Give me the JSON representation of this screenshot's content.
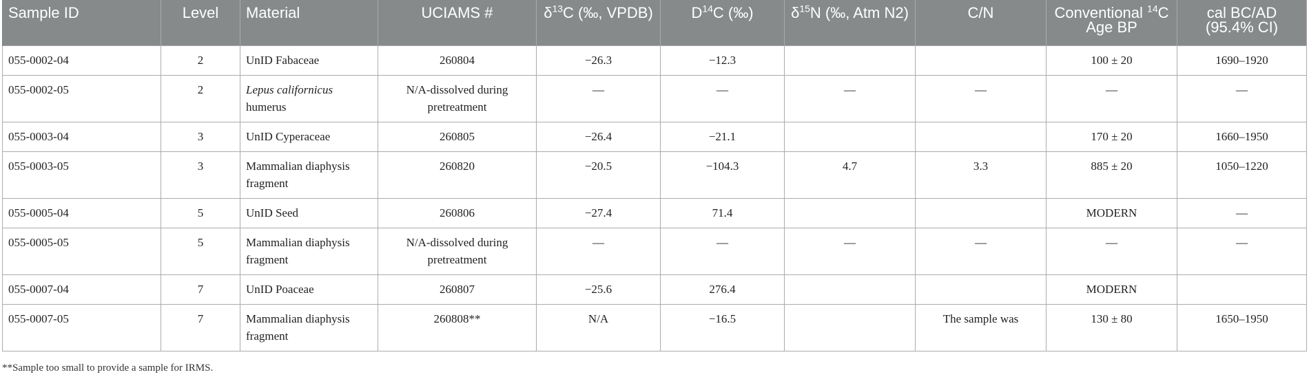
{
  "table": {
    "headers": [
      {
        "pre": "Sample ID",
        "sup": "",
        "post": ""
      },
      {
        "pre": "Level",
        "sup": "",
        "post": ""
      },
      {
        "pre": "Material",
        "sup": "",
        "post": ""
      },
      {
        "pre": "UCIAMS #",
        "sup": "",
        "post": ""
      },
      {
        "pre": "δ",
        "sup": "13",
        "post": "C (‰, VPDB)"
      },
      {
        "pre": "D",
        "sup": "14",
        "post": "C (‰)"
      },
      {
        "pre": "δ",
        "sup": "15",
        "post": "N (‰, Atm N2)"
      },
      {
        "pre": "C/N",
        "sup": "",
        "post": ""
      },
      {
        "pre": "Conventional ",
        "sup": "14",
        "post": "C Age BP"
      },
      {
        "pre": "cal BC/AD (95.4% CI)",
        "sup": "",
        "post": ""
      }
    ],
    "rows": [
      {
        "sample_id": "055-0002-04",
        "level": "2",
        "material_italic": "",
        "material": "UnID Fabaceae",
        "uciams": "260804",
        "d13c": "−26.3",
        "d14c": "−12.3",
        "d15n": "",
        "cn": "",
        "age": "100 ± 20",
        "cal": "1690–1920"
      },
      {
        "sample_id": "055-0002-05",
        "level": "2",
        "material_italic": "Lepus californicus",
        "material": "humerus",
        "uciams": "N/A-dissolved during pretreatment",
        "d13c": "—",
        "d14c": "—",
        "d15n": "—",
        "cn": "—",
        "age": "—",
        "cal": "—"
      },
      {
        "sample_id": "055-0003-04",
        "level": "3",
        "material_italic": "",
        "material": "UnID Cyperaceae",
        "uciams": "260805",
        "d13c": "−26.4",
        "d14c": "−21.1",
        "d15n": "",
        "cn": "",
        "age": "170 ± 20",
        "cal": "1660–1950"
      },
      {
        "sample_id": "055-0003-05",
        "level": "3",
        "material_italic": "",
        "material": "Mammalian diaphysis fragment",
        "uciams": "260820",
        "d13c": "−20.5",
        "d14c": "−104.3",
        "d15n": "4.7",
        "cn": "3.3",
        "age": "885 ± 20",
        "cal": "1050–1220"
      },
      {
        "sample_id": "055-0005-04",
        "level": "5",
        "material_italic": "",
        "material": "UnID Seed",
        "uciams": "260806",
        "d13c": "−27.4",
        "d14c": "71.4",
        "d15n": "",
        "cn": "",
        "age": "MODERN",
        "cal": "—"
      },
      {
        "sample_id": "055-0005-05",
        "level": "5",
        "material_italic": "",
        "material": "Mammalian diaphysis fragment",
        "uciams": "N/A-dissolved during pretreatment",
        "d13c": "—",
        "d14c": "—",
        "d15n": "—",
        "cn": "—",
        "age": "—",
        "cal": "—"
      },
      {
        "sample_id": "055-0007-04",
        "level": "7",
        "material_italic": "",
        "material": "UnID Poaceae",
        "uciams": "260807",
        "d13c": "−25.6",
        "d14c": "276.4",
        "d15n": "",
        "cn": "",
        "age": "MODERN",
        "cal": ""
      },
      {
        "sample_id": "055-0007-05",
        "level": "7",
        "material_italic": "",
        "material": "Mammalian diaphysis fragment",
        "uciams": "260808**",
        "d13c": "N/A",
        "d14c": "−16.5",
        "d15n": "",
        "cn": "The sample was",
        "age": "130 ± 80",
        "cal": "1650–1950"
      }
    ],
    "footnote": "**Sample too small to provide a sample for IRMS."
  }
}
